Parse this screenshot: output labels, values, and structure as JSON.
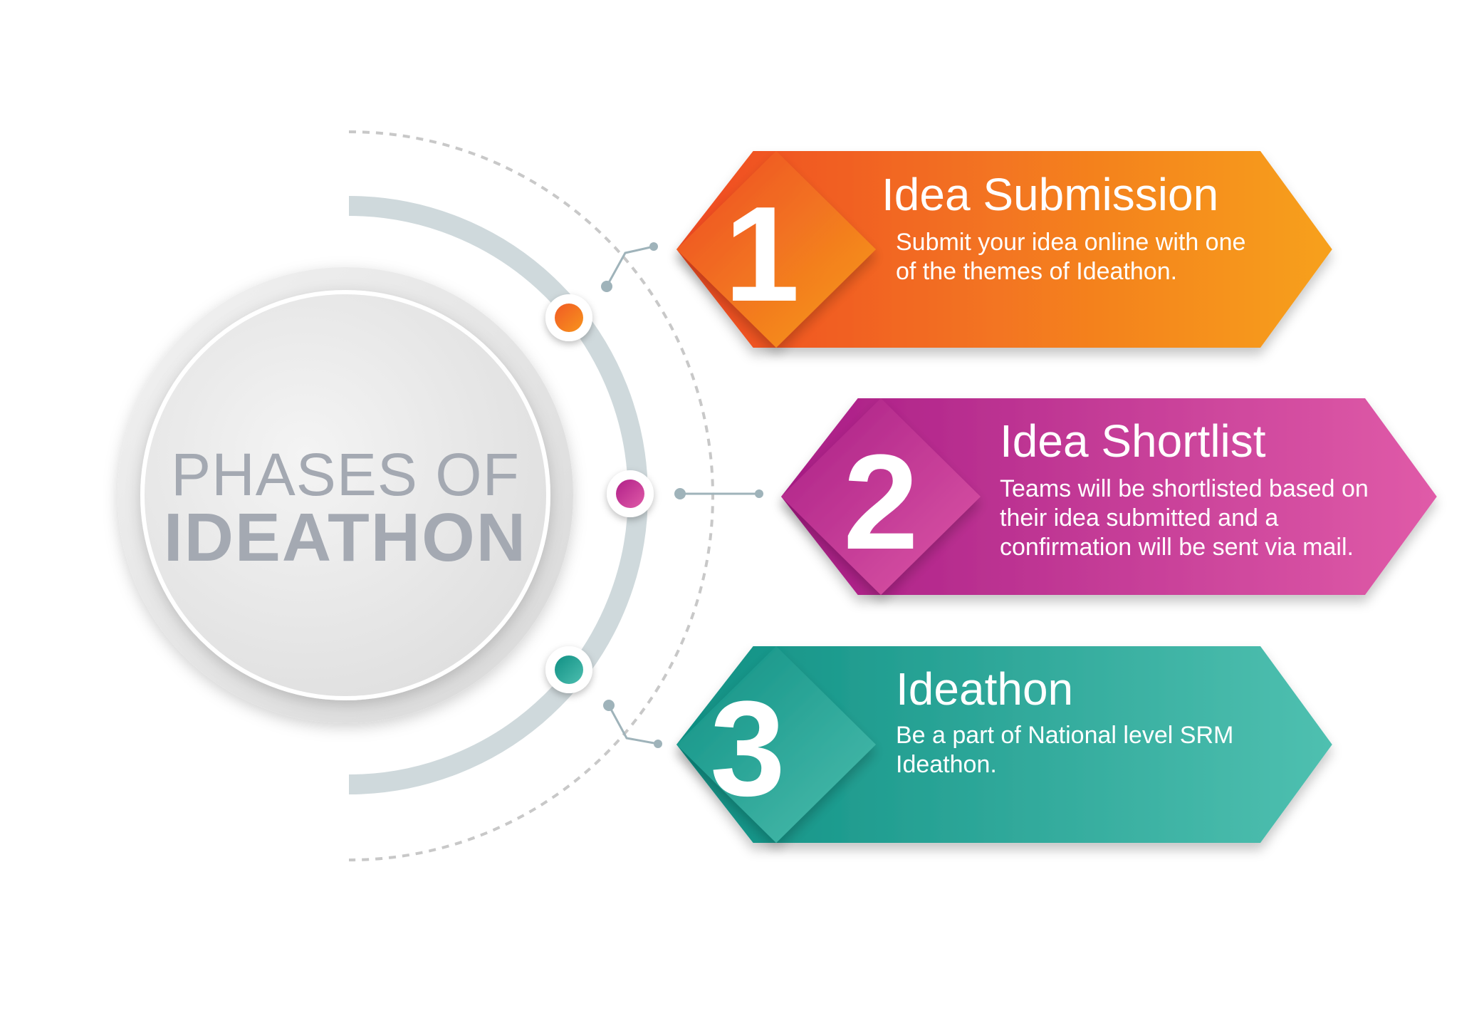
{
  "center": {
    "line1": "PHASES OF",
    "line2": "IDEATHON"
  },
  "phases": [
    {
      "number": "1",
      "title": "Idea Submission",
      "description": "Submit your idea online with one of the themes of Ideathon.",
      "gradient_start": "#ef4a24",
      "gradient_end": "#f7a11c",
      "dot_color_start": "#f15a24",
      "dot_color_end": "#f7941d"
    },
    {
      "number": "2",
      "title": "Idea Shortlist",
      "description": "Teams will be shortlisted based on their idea submitted and a confirmation will be sent via mail.",
      "gradient_start": "#a91d86",
      "gradient_end": "#e05ba8",
      "dot_color_start": "#b01f88",
      "dot_color_end": "#e05ba8"
    },
    {
      "number": "3",
      "title": "Ideathon",
      "description": "Be a part of National level SRM Ideathon.",
      "gradient_start": "#0f9084",
      "gradient_end": "#4fc0b0",
      "dot_color_start": "#0f8f83",
      "dot_color_end": "#4dbfb0"
    }
  ],
  "colors": {
    "arc": "#cfd9dc",
    "dashed_arc": "#c8c8c8",
    "connector": "#9fb3ba",
    "center_text": "#a4a9b2"
  }
}
